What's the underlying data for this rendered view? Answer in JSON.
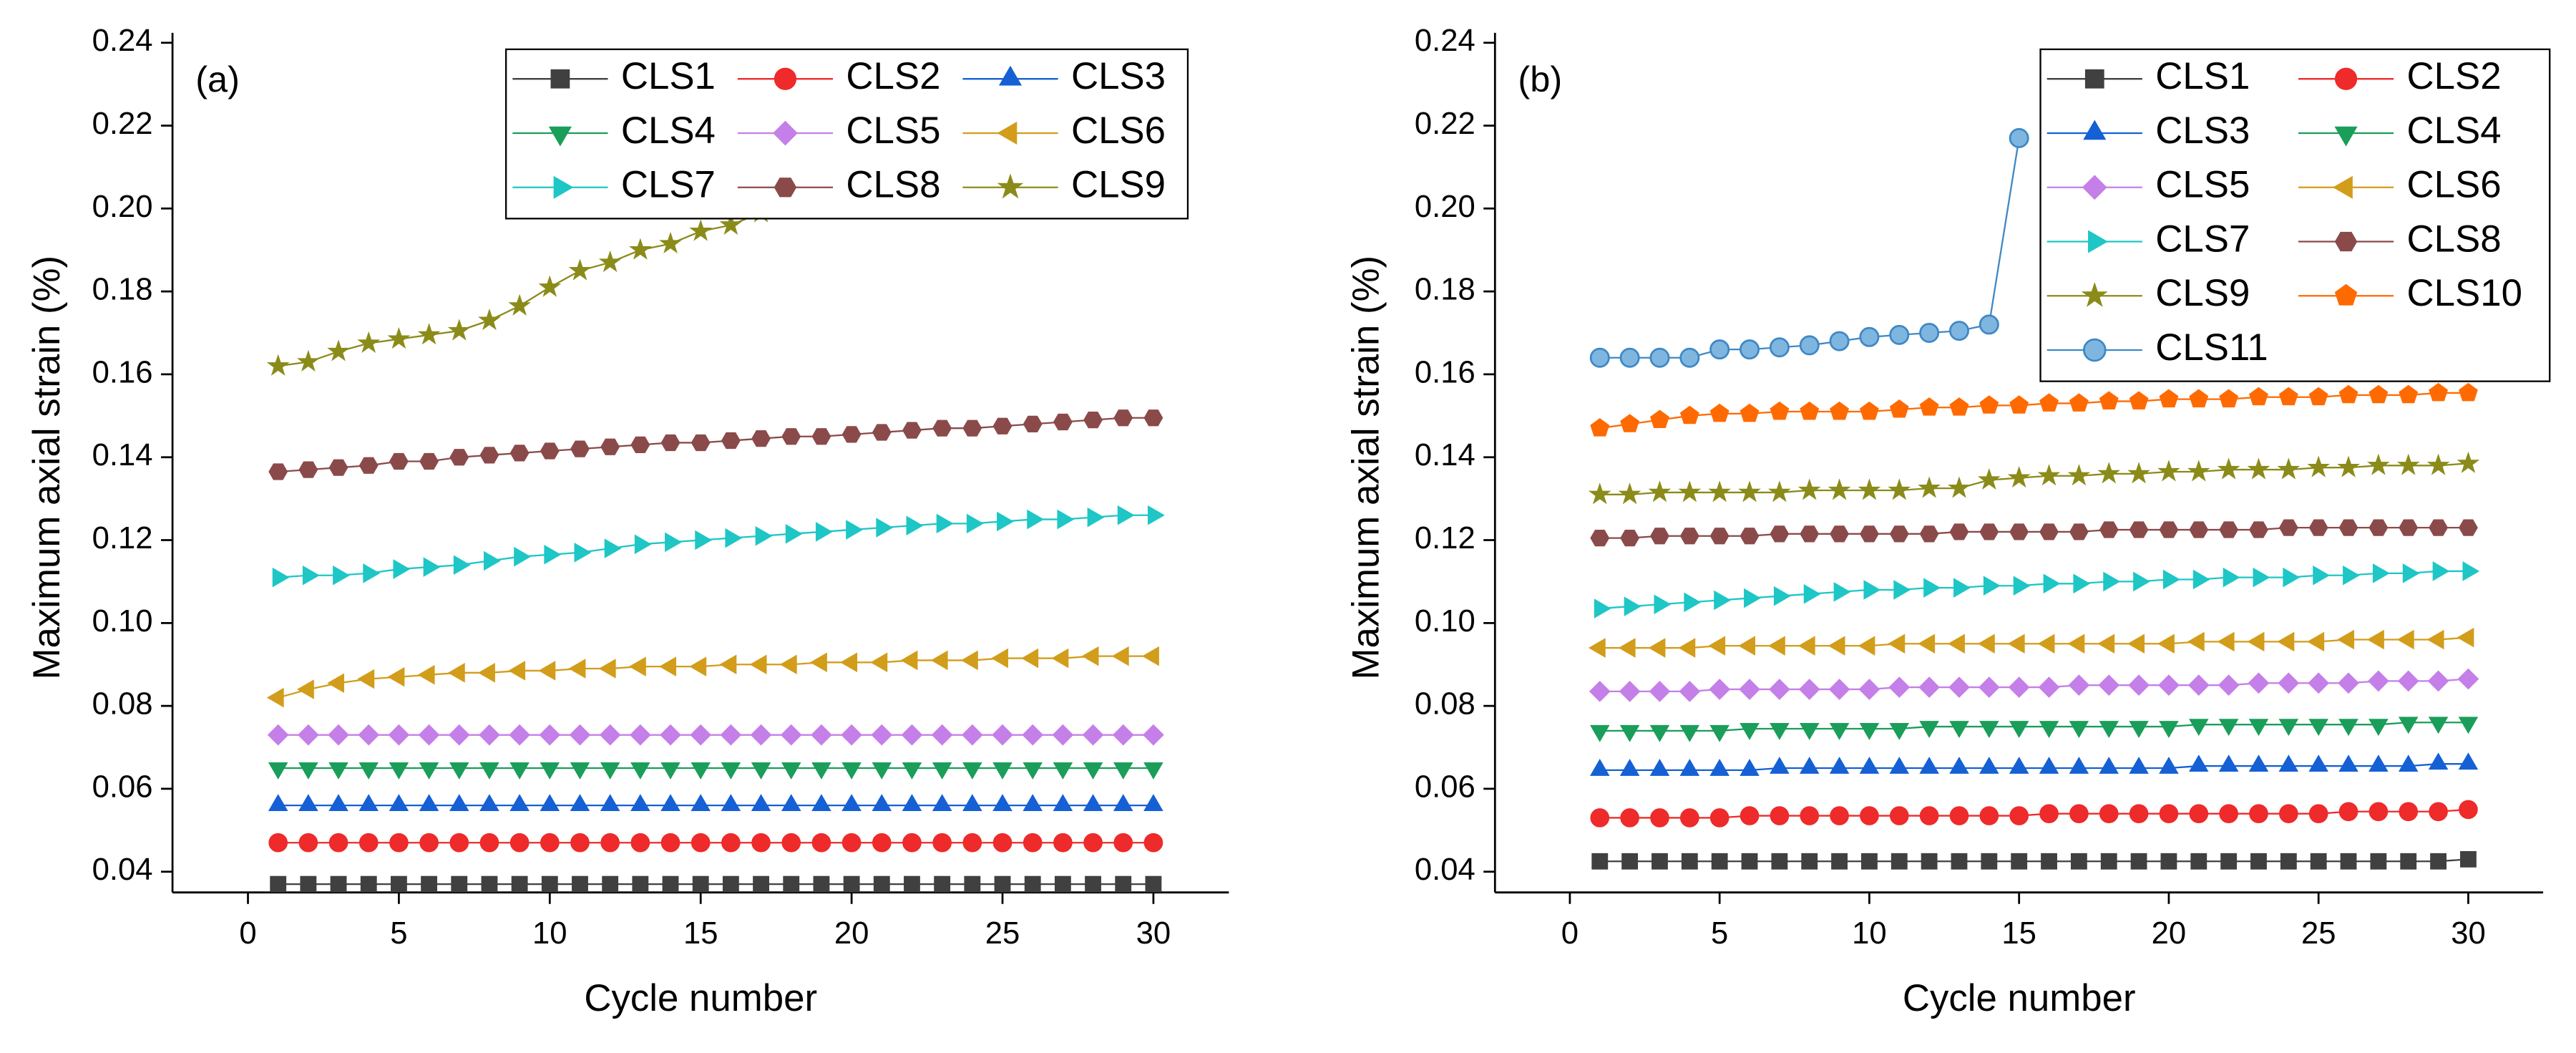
{
  "chart_data": [
    {
      "type": "line",
      "panel_label": "(a)",
      "xlabel": "Cycle number",
      "ylabel": "Maximum axial strain (%)",
      "x": [
        1,
        2,
        3,
        4,
        5,
        6,
        7,
        8,
        9,
        10,
        11,
        12,
        13,
        14,
        15,
        16,
        17,
        18,
        19,
        20,
        21,
        22,
        23,
        24,
        25,
        26,
        27,
        28,
        29,
        30
      ],
      "xlim": [
        -2.5,
        32.5
      ],
      "xticks": [
        0,
        5,
        10,
        15,
        20,
        25,
        30
      ],
      "ylim": [
        0.035,
        0.24
      ],
      "yticks": [
        0.04,
        0.06,
        0.08,
        {
          "value": 0.1,
          "label": "0.10"
        },
        0.12,
        0.14,
        0.16,
        0.18,
        {
          "value": 0.2,
          "label": "0.20"
        },
        0.22,
        0.24
      ],
      "legend_columns": 3,
      "series": [
        {
          "name": "CLS1",
          "color": "#404040",
          "marker": "square",
          "values": [
            0.037,
            0.037,
            0.037,
            0.037,
            0.037,
            0.037,
            0.037,
            0.037,
            0.037,
            0.037,
            0.037,
            0.037,
            0.037,
            0.037,
            0.037,
            0.037,
            0.037,
            0.037,
            0.037,
            0.037,
            0.037,
            0.037,
            0.037,
            0.037,
            0.037,
            0.037,
            0.037,
            0.037,
            0.037,
            0.037
          ]
        },
        {
          "name": "CLS2",
          "color": "#ee2a2a",
          "marker": "circle",
          "values": [
            0.047,
            0.047,
            0.047,
            0.047,
            0.047,
            0.047,
            0.047,
            0.047,
            0.047,
            0.047,
            0.047,
            0.047,
            0.047,
            0.047,
            0.047,
            0.047,
            0.047,
            0.047,
            0.047,
            0.047,
            0.047,
            0.047,
            0.047,
            0.047,
            0.047,
            0.047,
            0.047,
            0.047,
            0.047,
            0.047
          ]
        },
        {
          "name": "CLS3",
          "color": "#1560d4",
          "marker": "triangle-up",
          "values": [
            0.056,
            0.056,
            0.056,
            0.056,
            0.056,
            0.056,
            0.056,
            0.056,
            0.056,
            0.056,
            0.056,
            0.056,
            0.056,
            0.056,
            0.056,
            0.056,
            0.056,
            0.056,
            0.056,
            0.056,
            0.056,
            0.056,
            0.056,
            0.056,
            0.056,
            0.056,
            0.056,
            0.056,
            0.056,
            0.056
          ]
        },
        {
          "name": "CLS4",
          "color": "#1a9e5a",
          "marker": "triangle-down",
          "values": [
            0.065,
            0.065,
            0.065,
            0.065,
            0.065,
            0.065,
            0.065,
            0.065,
            0.065,
            0.065,
            0.065,
            0.065,
            0.065,
            0.065,
            0.065,
            0.065,
            0.065,
            0.065,
            0.065,
            0.065,
            0.065,
            0.065,
            0.065,
            0.065,
            0.065,
            0.065,
            0.065,
            0.065,
            0.065,
            0.065
          ]
        },
        {
          "name": "CLS5",
          "color": "#c57fe8",
          "marker": "diamond",
          "values": [
            0.073,
            0.073,
            0.073,
            0.073,
            0.073,
            0.073,
            0.073,
            0.073,
            0.073,
            0.073,
            0.073,
            0.073,
            0.073,
            0.073,
            0.073,
            0.073,
            0.073,
            0.073,
            0.073,
            0.073,
            0.073,
            0.073,
            0.073,
            0.073,
            0.073,
            0.073,
            0.073,
            0.073,
            0.073,
            0.073
          ]
        },
        {
          "name": "CLS6",
          "color": "#d29d1a",
          "marker": "triangle-left",
          "values": [
            0.082,
            0.084,
            0.0855,
            0.0865,
            0.087,
            0.0875,
            0.088,
            0.088,
            0.0885,
            0.0885,
            0.089,
            0.089,
            0.0895,
            0.0895,
            0.0895,
            0.09,
            0.09,
            0.09,
            0.0905,
            0.0905,
            0.0905,
            0.091,
            0.091,
            0.091,
            0.0915,
            0.0915,
            0.0915,
            0.092,
            0.092,
            0.092
          ]
        },
        {
          "name": "CLS7",
          "color": "#1ec6c6",
          "marker": "triangle-right",
          "values": [
            0.111,
            0.1115,
            0.1115,
            0.112,
            0.113,
            0.1135,
            0.114,
            0.115,
            0.116,
            0.1165,
            0.117,
            0.118,
            0.119,
            0.1195,
            0.12,
            0.1205,
            0.121,
            0.1215,
            0.122,
            0.1225,
            0.123,
            0.1235,
            0.124,
            0.124,
            0.1245,
            0.125,
            0.125,
            0.1255,
            0.126,
            0.126
          ]
        },
        {
          "name": "CLS8",
          "color": "#8b4a4a",
          "marker": "hexagon",
          "values": [
            0.1365,
            0.137,
            0.1375,
            0.138,
            0.139,
            0.139,
            0.14,
            0.1405,
            0.141,
            0.1415,
            0.142,
            0.1425,
            0.143,
            0.1435,
            0.1435,
            0.144,
            0.1445,
            0.145,
            0.145,
            0.1455,
            0.146,
            0.1465,
            0.147,
            0.147,
            0.1475,
            0.148,
            0.1485,
            0.149,
            0.1495,
            0.1495
          ]
        },
        {
          "name": "CLS9",
          "color": "#8b8b1a",
          "marker": "star",
          "values": [
            0.162,
            0.163,
            0.1655,
            0.1675,
            0.1685,
            0.1695,
            0.1705,
            0.173,
            0.1765,
            0.181,
            0.185,
            0.187,
            0.19,
            0.1915,
            0.1945,
            0.196,
            0.199,
            null,
            null,
            null,
            null,
            null,
            null,
            null,
            null,
            null,
            null,
            null,
            null,
            null
          ]
        }
      ]
    },
    {
      "type": "line",
      "panel_label": "(b)",
      "xlabel": "Cycle number",
      "ylabel": "Maximum axial strain (%)",
      "x": [
        1,
        2,
        3,
        4,
        5,
        6,
        7,
        8,
        9,
        10,
        11,
        12,
        13,
        14,
        15,
        16,
        17,
        18,
        19,
        20,
        21,
        22,
        23,
        24,
        25,
        26,
        27,
        28,
        29,
        30
      ],
      "xlim": [
        -2.5,
        32.5
      ],
      "xticks": [
        0,
        5,
        10,
        15,
        20,
        25,
        30
      ],
      "ylim": [
        0.035,
        0.24
      ],
      "yticks": [
        0.04,
        0.06,
        0.08,
        {
          "value": 0.1,
          "label": "0.10"
        },
        0.12,
        0.14,
        0.16,
        0.18,
        {
          "value": 0.2,
          "label": "0.20"
        },
        0.22,
        0.24
      ],
      "legend_columns": 2,
      "series": [
        {
          "name": "CLS1",
          "color": "#404040",
          "marker": "square",
          "values": [
            0.0425,
            0.0425,
            0.0425,
            0.0425,
            0.0425,
            0.0425,
            0.0425,
            0.0425,
            0.0425,
            0.0425,
            0.0425,
            0.0425,
            0.0425,
            0.0425,
            0.0425,
            0.0425,
            0.0425,
            0.0425,
            0.0425,
            0.0425,
            0.0425,
            0.0425,
            0.0425,
            0.0425,
            0.0425,
            0.0425,
            0.0425,
            0.0425,
            0.0425,
            0.043
          ]
        },
        {
          "name": "CLS2",
          "color": "#ee2a2a",
          "marker": "circle",
          "values": [
            0.053,
            0.053,
            0.053,
            0.053,
            0.053,
            0.0535,
            0.0535,
            0.0535,
            0.0535,
            0.0535,
            0.0535,
            0.0535,
            0.0535,
            0.0535,
            0.0535,
            0.054,
            0.054,
            0.054,
            0.054,
            0.054,
            0.054,
            0.054,
            0.054,
            0.054,
            0.054,
            0.0545,
            0.0545,
            0.0545,
            0.0545,
            0.055
          ]
        },
        {
          "name": "CLS3",
          "color": "#1560d4",
          "marker": "triangle-up",
          "values": [
            0.0645,
            0.0645,
            0.0645,
            0.0645,
            0.0645,
            0.0645,
            0.065,
            0.065,
            0.065,
            0.065,
            0.065,
            0.065,
            0.065,
            0.065,
            0.065,
            0.065,
            0.065,
            0.065,
            0.065,
            0.065,
            0.0655,
            0.0655,
            0.0655,
            0.0655,
            0.0655,
            0.0655,
            0.0655,
            0.0655,
            0.066,
            0.066
          ]
        },
        {
          "name": "CLS4",
          "color": "#1a9e5a",
          "marker": "triangle-down",
          "values": [
            0.074,
            0.074,
            0.074,
            0.074,
            0.074,
            0.0745,
            0.0745,
            0.0745,
            0.0745,
            0.0745,
            0.0745,
            0.075,
            0.075,
            0.075,
            0.075,
            0.075,
            0.075,
            0.075,
            0.075,
            0.075,
            0.0755,
            0.0755,
            0.0755,
            0.0755,
            0.0755,
            0.0755,
            0.0755,
            0.076,
            0.076,
            0.076
          ]
        },
        {
          "name": "CLS5",
          "color": "#c57fe8",
          "marker": "diamond",
          "values": [
            0.0835,
            0.0835,
            0.0835,
            0.0835,
            0.084,
            0.084,
            0.084,
            0.084,
            0.084,
            0.084,
            0.0845,
            0.0845,
            0.0845,
            0.0845,
            0.0845,
            0.0845,
            0.085,
            0.085,
            0.085,
            0.085,
            0.085,
            0.085,
            0.0855,
            0.0855,
            0.0855,
            0.0855,
            0.086,
            0.086,
            0.086,
            0.0865
          ]
        },
        {
          "name": "CLS6",
          "color": "#d29d1a",
          "marker": "triangle-left",
          "values": [
            0.094,
            0.094,
            0.094,
            0.094,
            0.0945,
            0.0945,
            0.0945,
            0.0945,
            0.0945,
            0.0945,
            0.095,
            0.095,
            0.095,
            0.095,
            0.095,
            0.095,
            0.095,
            0.095,
            0.095,
            0.095,
            0.0955,
            0.0955,
            0.0955,
            0.0955,
            0.0955,
            0.096,
            0.096,
            0.096,
            0.096,
            0.0965
          ]
        },
        {
          "name": "CLS7",
          "color": "#1ec6c6",
          "marker": "triangle-right",
          "values": [
            0.1035,
            0.104,
            0.1045,
            0.105,
            0.1055,
            0.106,
            0.1065,
            0.107,
            0.1075,
            0.108,
            0.108,
            0.1085,
            0.1085,
            0.109,
            0.109,
            0.1095,
            0.1095,
            0.11,
            0.11,
            0.1105,
            0.1105,
            0.111,
            0.111,
            0.111,
            0.1115,
            0.1115,
            0.112,
            0.112,
            0.1125,
            0.1125
          ]
        },
        {
          "name": "CLS8",
          "color": "#8b4a4a",
          "marker": "hexagon",
          "values": [
            0.1205,
            0.1205,
            0.121,
            0.121,
            0.121,
            0.121,
            0.1215,
            0.1215,
            0.1215,
            0.1215,
            0.1215,
            0.1215,
            0.122,
            0.122,
            0.122,
            0.122,
            0.122,
            0.1225,
            0.1225,
            0.1225,
            0.1225,
            0.1225,
            0.1225,
            0.123,
            0.123,
            0.123,
            0.123,
            0.123,
            0.123,
            0.123
          ]
        },
        {
          "name": "CLS9",
          "color": "#8b8b1a",
          "marker": "star",
          "values": [
            0.131,
            0.131,
            0.1315,
            0.1315,
            0.1315,
            0.1315,
            0.1315,
            0.132,
            0.132,
            0.132,
            0.132,
            0.1325,
            0.1325,
            0.1345,
            0.135,
            0.1355,
            0.1355,
            0.136,
            0.136,
            0.1365,
            0.1365,
            0.137,
            0.137,
            0.137,
            0.1375,
            0.1375,
            0.138,
            0.138,
            0.138,
            0.1385
          ]
        },
        {
          "name": "CLS10",
          "color": "#ff6a00",
          "marker": "pentagon",
          "values": [
            0.147,
            0.148,
            0.149,
            0.15,
            0.1505,
            0.1505,
            0.151,
            0.151,
            0.151,
            0.151,
            0.1515,
            0.152,
            0.152,
            0.1525,
            0.1525,
            0.153,
            0.153,
            0.1535,
            0.1535,
            0.154,
            0.154,
            0.154,
            0.1545,
            0.1545,
            0.1545,
            0.155,
            0.155,
            0.155,
            0.1555,
            0.1555
          ]
        },
        {
          "name": "CLS11",
          "color": "#3f88c5",
          "marker": "sphere",
          "values": [
            0.164,
            0.164,
            0.164,
            0.164,
            0.166,
            0.166,
            0.1665,
            0.167,
            0.168,
            0.169,
            0.1695,
            0.17,
            0.1705,
            0.172,
            0.217,
            null,
            null,
            null,
            null,
            null,
            null,
            null,
            null,
            null,
            null,
            null,
            null,
            null,
            null,
            null
          ]
        }
      ]
    }
  ]
}
